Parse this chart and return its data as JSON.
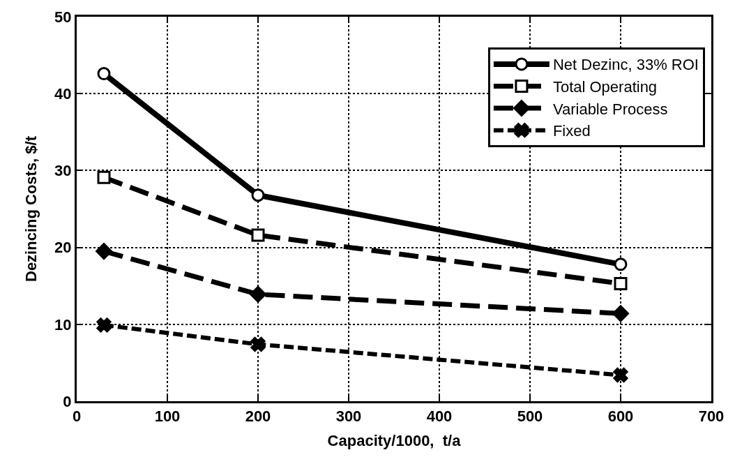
{
  "chart_data": {
    "type": "line",
    "xlabel": "Capacity/1000,  t/a",
    "ylabel": "Dezincing Costs, $/t",
    "x": [
      30,
      200,
      600
    ],
    "xlim": [
      0,
      700
    ],
    "xticks": [
      0,
      100,
      200,
      300,
      400,
      500,
      600,
      700
    ],
    "ylim": [
      0,
      50
    ],
    "yticks": [
      0,
      10,
      20,
      30,
      40,
      50
    ],
    "grid": true,
    "legend": "top right",
    "series": [
      {
        "name": "Net Dezinc, 33% ROI",
        "color": "#000000",
        "values": [
          42.6,
          26.8,
          17.8
        ],
        "marker": "circle",
        "line_style": "solid"
      },
      {
        "name": "Total Operating",
        "color": "#000000",
        "values": [
          29.1,
          21.6,
          15.3
        ],
        "marker": "square",
        "line_style": "dashed"
      },
      {
        "name": "Variable Process",
        "color": "#000000",
        "values": [
          19.5,
          13.9,
          11.4
        ],
        "marker": "diamond",
        "line_style": "dashed"
      },
      {
        "name": "Fixed",
        "color": "#000000",
        "values": [
          9.9,
          7.4,
          3.4
        ],
        "marker": "cross",
        "line_style": "dotted"
      }
    ]
  }
}
